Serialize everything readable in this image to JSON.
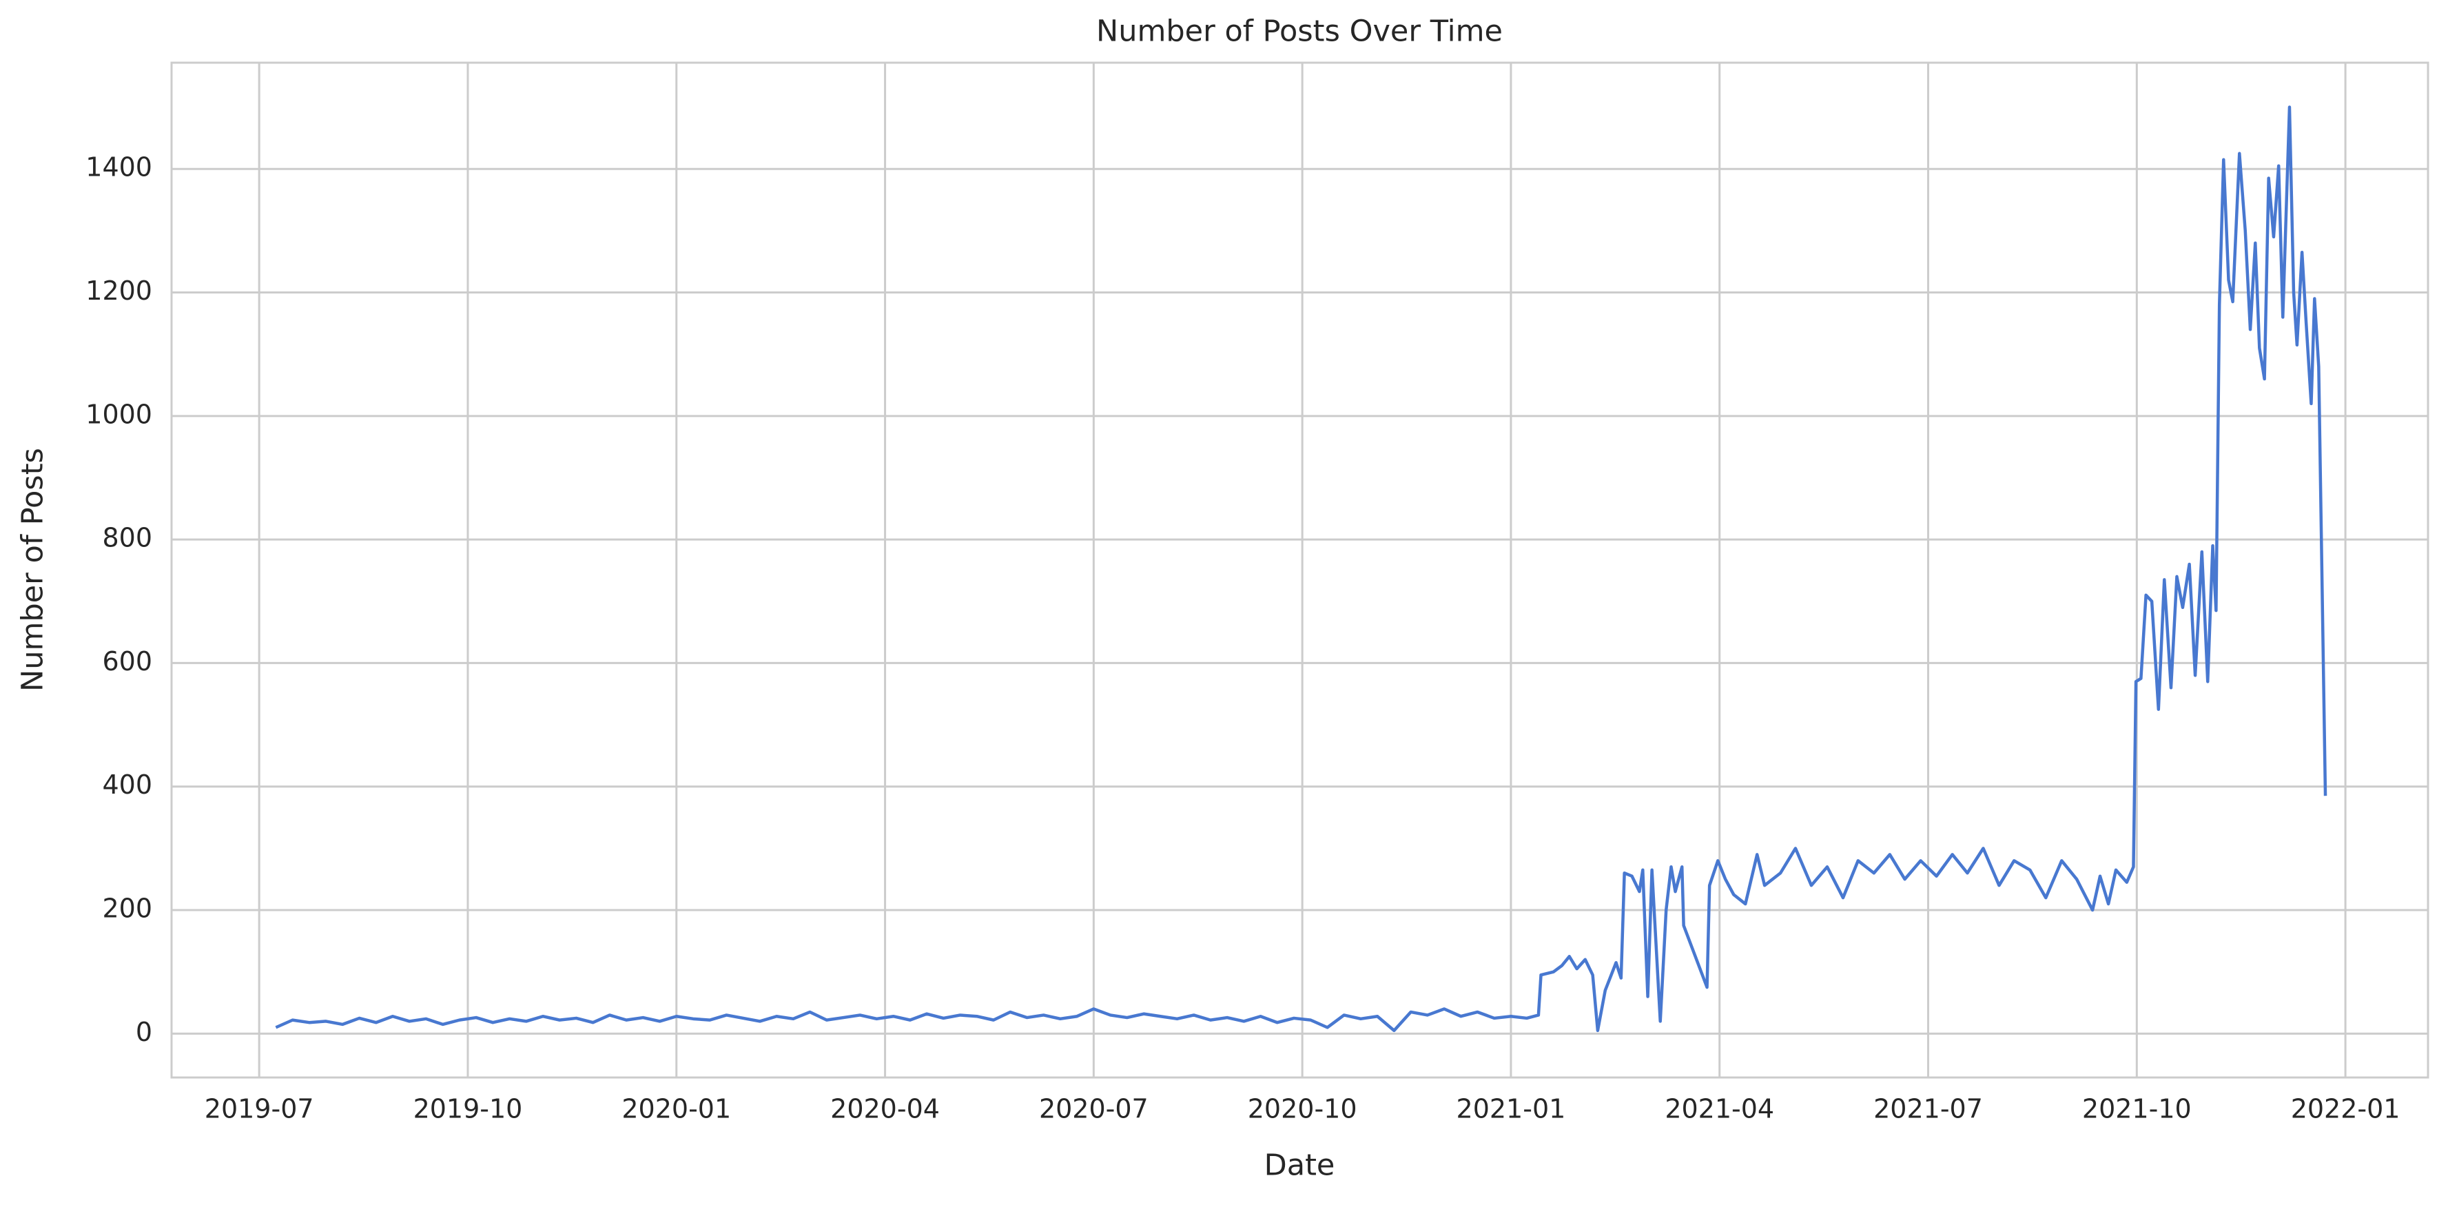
{
  "chart_data": {
    "type": "line",
    "title": "Number of Posts Over Time",
    "x_label": "Date",
    "y_label": "Number of Posts",
    "x": [
      2019.52,
      2019.54,
      2019.56,
      2019.58,
      2019.6,
      2019.62,
      2019.64,
      2019.66,
      2019.68,
      2019.7,
      2019.72,
      2019.74,
      2019.76,
      2019.78,
      2019.8,
      2019.82,
      2019.84,
      2019.86,
      2019.88,
      2019.9,
      2019.92,
      2019.94,
      2019.96,
      2019.98,
      2020.0,
      2020.02,
      2020.04,
      2020.06,
      2020.08,
      2020.1,
      2020.12,
      2020.14,
      2020.16,
      2020.18,
      2020.2,
      2020.22,
      2020.24,
      2020.26,
      2020.28,
      2020.3,
      2020.32,
      2020.34,
      2020.36,
      2020.38,
      2020.4,
      2020.42,
      2020.44,
      2020.46,
      2020.48,
      2020.5,
      2020.52,
      2020.54,
      2020.56,
      2020.58,
      2020.6,
      2020.62,
      2020.64,
      2020.66,
      2020.68,
      2020.7,
      2020.72,
      2020.74,
      2020.76,
      2020.78,
      2020.8,
      2020.82,
      2020.84,
      2020.86,
      2020.88,
      2020.9,
      2020.92,
      2020.94,
      2020.96,
      2020.98,
      2021.0,
      2021.019,
      2021.033,
      2021.036,
      2021.051,
      2021.061,
      2021.07,
      2021.079,
      2021.089,
      2021.098,
      2021.104,
      2021.113,
      2021.126,
      2021.132,
      2021.136,
      2021.145,
      2021.154,
      2021.158,
      2021.164,
      2021.169,
      2021.179,
      2021.186,
      2021.192,
      2021.197,
      2021.205,
      2021.207,
      2021.235,
      2021.238,
      2021.248,
      2021.257,
      2021.267,
      2021.281,
      2021.295,
      2021.304,
      2021.323,
      2021.341,
      2021.36,
      2021.379,
      2021.398,
      2021.416,
      2021.435,
      2021.454,
      2021.472,
      2021.491,
      2021.51,
      2021.529,
      2021.547,
      2021.566,
      2021.585,
      2021.603,
      2021.622,
      2021.641,
      2021.66,
      2021.678,
      2021.697,
      2021.706,
      2021.716,
      2021.725,
      2021.738,
      2021.746,
      2021.749,
      2021.755,
      2021.761,
      2021.768,
      2021.776,
      2021.783,
      2021.791,
      2021.798,
      2021.805,
      2021.813,
      2021.82,
      2021.828,
      2021.835,
      2021.841,
      2021.845,
      2021.849,
      2021.854,
      2021.86,
      2021.865,
      2021.873,
      2021.88,
      2021.886,
      2021.892,
      2021.897,
      2021.903,
      2021.908,
      2021.914,
      2021.92,
      2021.925,
      2021.933,
      2021.938,
      2021.942,
      2021.948,
      2021.953,
      2021.959,
      2021.963,
      2021.968,
      2021.976
    ],
    "values": [
      10,
      22,
      18,
      20,
      15,
      25,
      18,
      28,
      20,
      24,
      15,
      22,
      26,
      18,
      24,
      20,
      28,
      22,
      25,
      18,
      30,
      22,
      26,
      20,
      28,
      24,
      22,
      30,
      25,
      20,
      28,
      24,
      35,
      22,
      26,
      30,
      24,
      28,
      22,
      32,
      25,
      30,
      28,
      22,
      35,
      26,
      30,
      24,
      28,
      40,
      30,
      26,
      32,
      28,
      24,
      30,
      22,
      26,
      20,
      28,
      18,
      25,
      22,
      10,
      30,
      24,
      28,
      5,
      35,
      30,
      40,
      28,
      35,
      25,
      28,
      25,
      30,
      95,
      100,
      110,
      125,
      105,
      120,
      95,
      5,
      70,
      115,
      90,
      260,
      255,
      230,
      265,
      60,
      265,
      20,
      200,
      270,
      230,
      270,
      175,
      75,
      240,
      280,
      250,
      225,
      210,
      290,
      240,
      260,
      300,
      240,
      270,
      220,
      280,
      260,
      290,
      250,
      280,
      255,
      290,
      260,
      300,
      240,
      280,
      265,
      220,
      280,
      250,
      200,
      255,
      210,
      265,
      245,
      270,
      570,
      575,
      710,
      700,
      525,
      735,
      560,
      740,
      690,
      760,
      580,
      780,
      570,
      790,
      685,
      1180,
      1415,
      1220,
      1185,
      1425,
      1300,
      1140,
      1280,
      1110,
      1060,
      1385,
      1290,
      1405,
      1160,
      1500,
      1200,
      1115,
      1265,
      1150,
      1020,
      1190,
      1080,
      385
    ],
    "color": "#4878d0",
    "xlim": [
      2019.395,
      2022.099
    ],
    "ylim": [
      -71,
      1572
    ],
    "xticks": [
      {
        "value": 2019.5,
        "label": "2019-07"
      },
      {
        "value": 2019.75,
        "label": "2019-10"
      },
      {
        "value": 2020.0,
        "label": "2020-01"
      },
      {
        "value": 2020.25,
        "label": "2020-04"
      },
      {
        "value": 2020.5,
        "label": "2020-07"
      },
      {
        "value": 2020.75,
        "label": "2020-10"
      },
      {
        "value": 2021.0,
        "label": "2021-01"
      },
      {
        "value": 2021.25,
        "label": "2021-04"
      },
      {
        "value": 2021.5,
        "label": "2021-07"
      },
      {
        "value": 2021.75,
        "label": "2021-10"
      },
      {
        "value": 2022.0,
        "label": "2022-01"
      }
    ],
    "yticks": [
      0,
      200,
      400,
      600,
      800,
      1000,
      1200,
      1400
    ],
    "grid": true
  }
}
